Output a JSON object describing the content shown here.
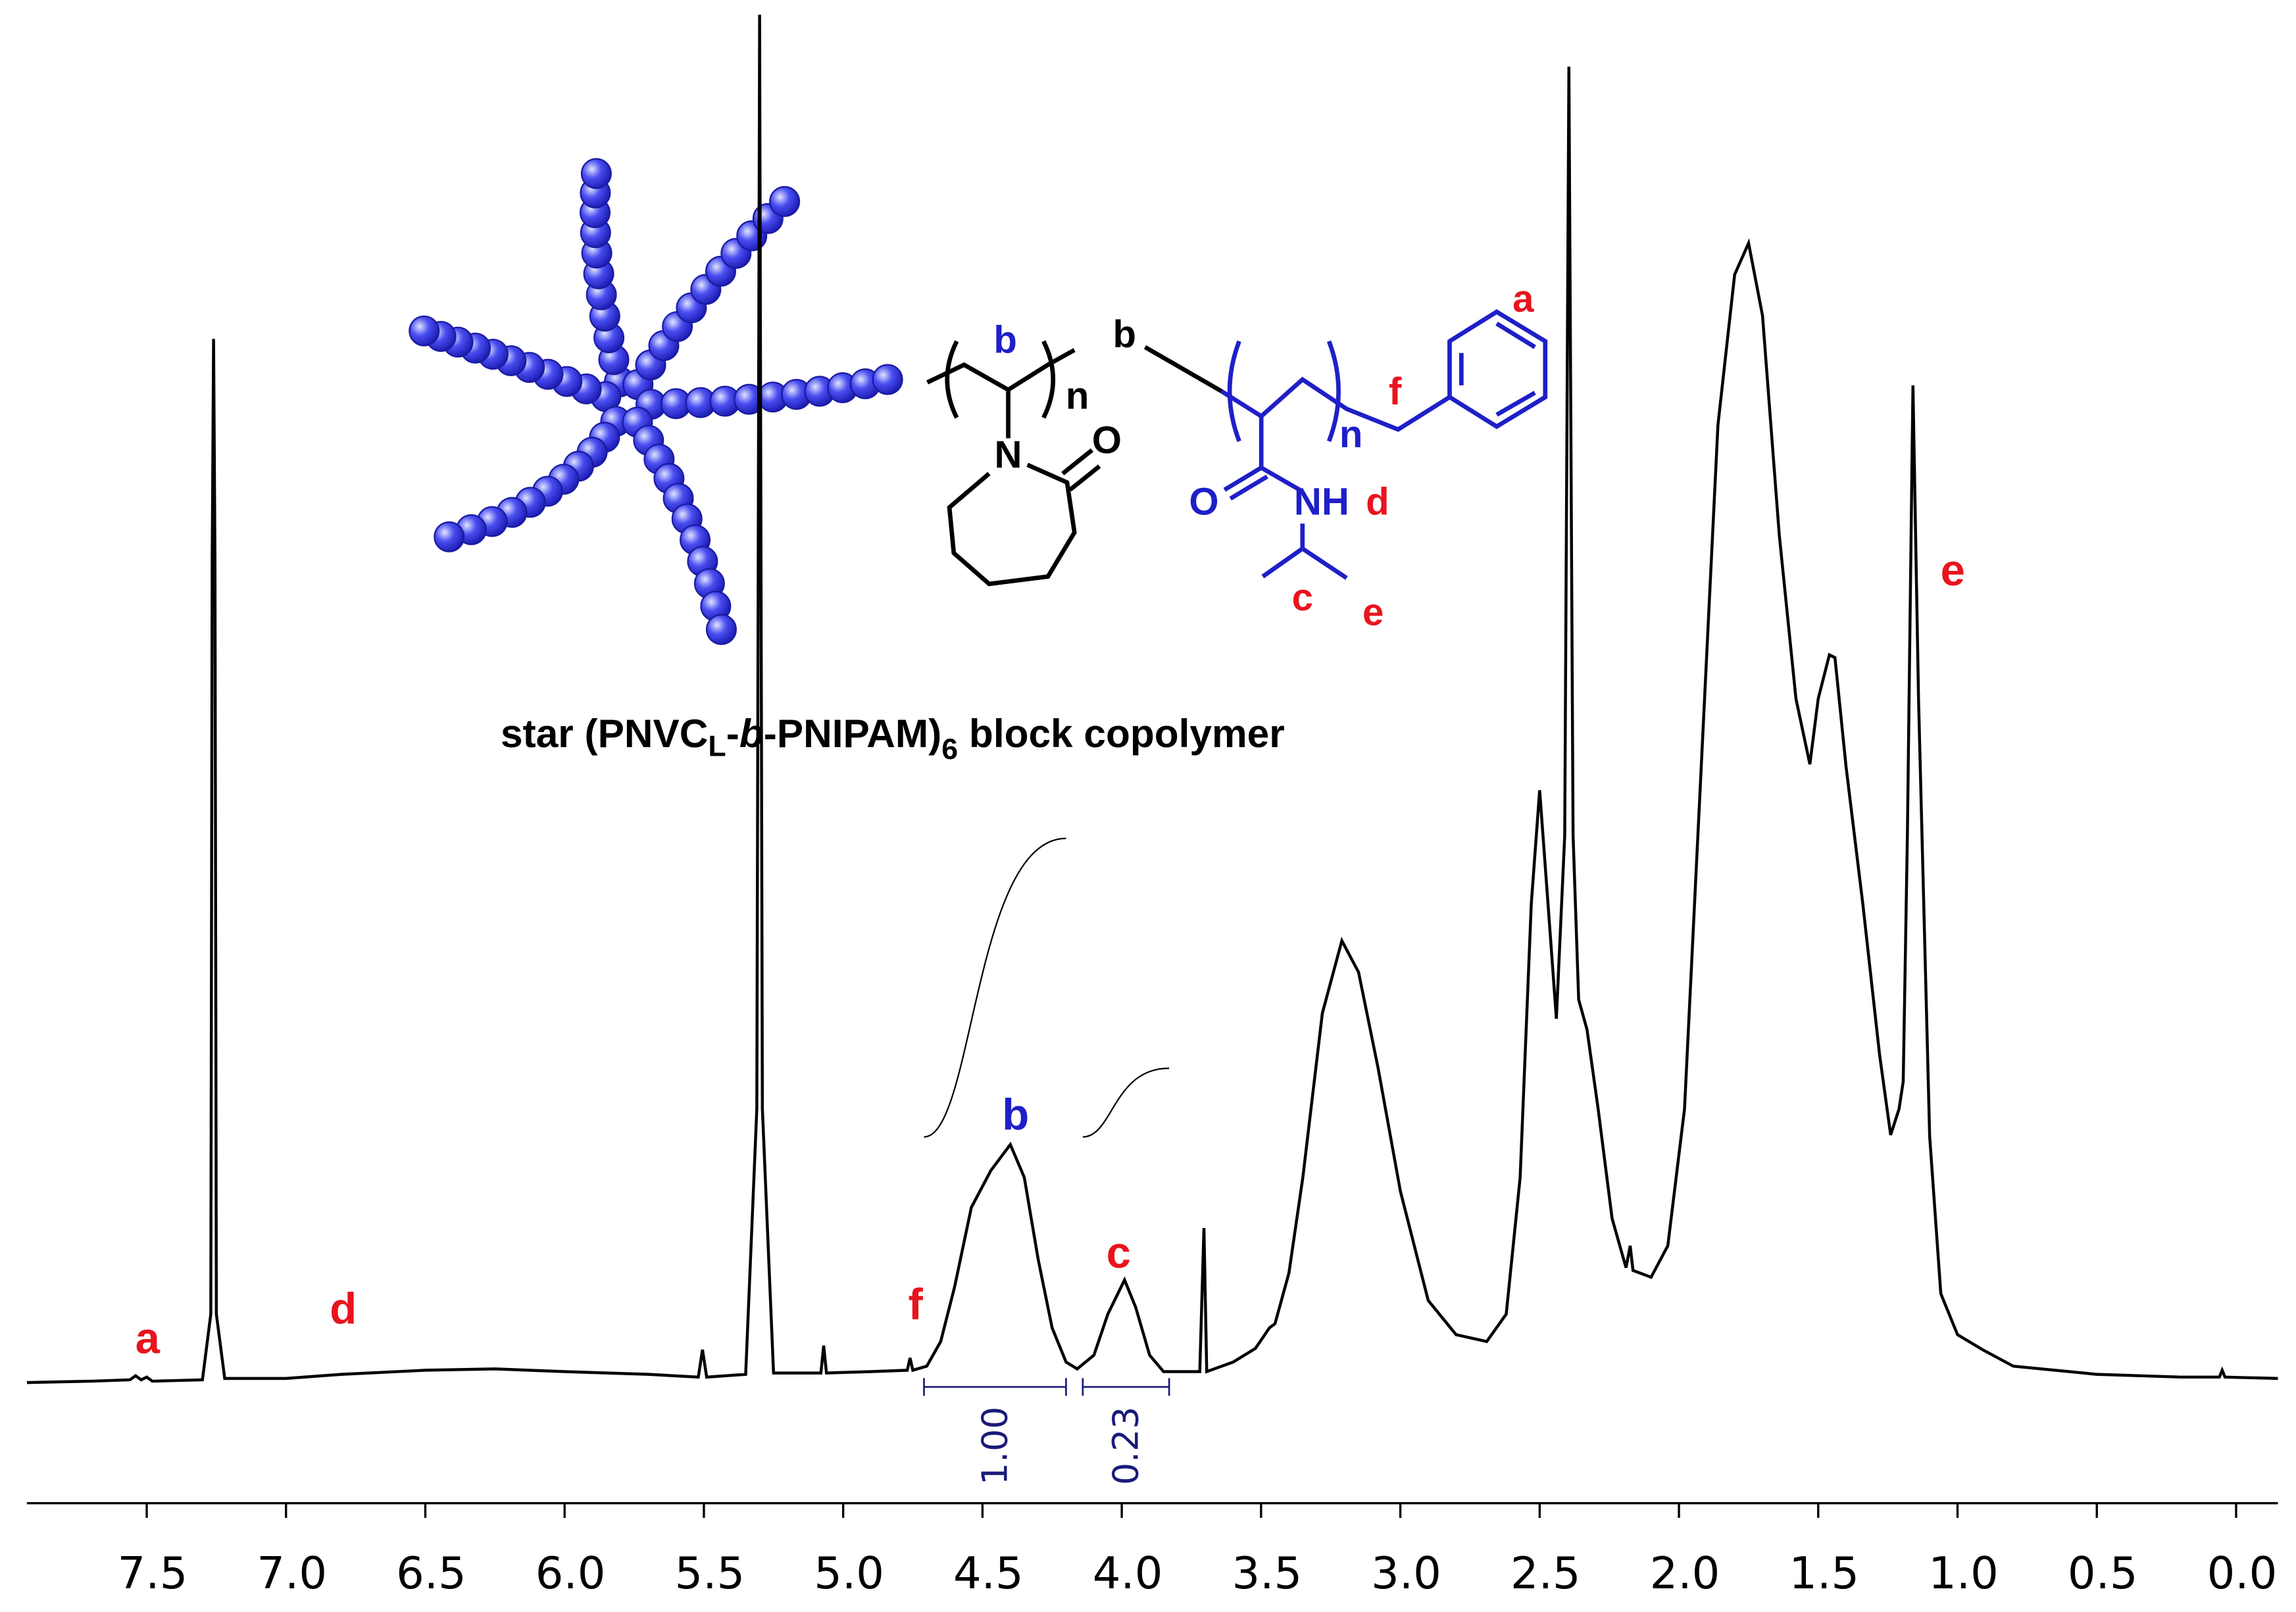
{
  "chart_data": {
    "type": "line",
    "x": [
      7.93,
      7.7,
      7.56,
      7.54,
      7.52,
      7.5,
      7.48,
      7.3,
      7.27,
      7.265,
      7.26,
      7.255,
      7.25,
      7.22,
      7.0,
      6.8,
      6.5,
      6.25,
      6.0,
      5.7,
      5.52,
      5.505,
      5.49,
      5.35,
      5.31,
      5.3,
      5.29,
      5.25,
      5.08,
      5.07,
      5.06,
      4.9,
      4.77,
      4.76,
      4.75,
      4.7,
      4.65,
      4.6,
      4.54,
      4.47,
      4.4,
      4.35,
      4.3,
      4.25,
      4.2,
      4.16,
      4.1,
      4.05,
      3.99,
      3.95,
      3.9,
      3.85,
      3.72,
      3.705,
      3.695,
      3.6,
      3.52,
      3.47,
      3.45,
      3.4,
      3.35,
      3.28,
      3.21,
      3.15,
      3.08,
      3.0,
      2.9,
      2.8,
      2.69,
      2.62,
      2.57,
      2.53,
      2.5,
      2.47,
      2.44,
      2.41,
      2.395,
      2.38,
      2.36,
      2.33,
      2.29,
      2.24,
      2.19,
      2.175,
      2.165,
      2.1,
      2.04,
      1.98,
      1.92,
      1.86,
      1.8,
      1.75,
      1.7,
      1.64,
      1.58,
      1.53,
      1.5,
      1.46,
      1.44,
      1.4,
      1.34,
      1.28,
      1.24,
      1.21,
      1.195,
      1.18,
      1.16,
      1.14,
      1.1,
      1.06,
      1.0,
      0.91,
      0.8,
      0.5,
      0.2,
      0.06,
      0.05,
      0.04,
      -0.15
    ],
    "values": [
      0,
      0.1,
      0.2,
      0.5,
      0.2,
      0.4,
      0.1,
      0.2,
      5,
      60,
      76.3,
      60,
      5,
      0.3,
      0.3,
      0.6,
      0.9,
      1.0,
      0.8,
      0.6,
      0.4,
      2.4,
      0.4,
      0.6,
      20,
      100,
      20,
      0.7,
      0.7,
      2.7,
      0.7,
      0.8,
      0.9,
      1.8,
      0.9,
      1.2,
      3,
      7,
      12.8,
      15.5,
      17.4,
      15,
      9,
      4,
      1.5,
      1.0,
      2.0,
      5,
      7.5,
      5.5,
      2,
      0.8,
      0.8,
      11.3,
      0.8,
      1.5,
      2.5,
      4,
      4.3,
      8,
      15,
      27,
      32.3,
      30,
      23,
      14,
      6,
      3.5,
      3.0,
      5,
      15,
      35,
      43.3,
      35,
      26.6,
      40,
      96.2,
      40,
      28,
      25.8,
      20,
      12,
      8.4,
      10,
      8.2,
      7.7,
      10,
      20,
      45,
      70,
      81,
      83.3,
      78,
      62,
      50,
      45.2,
      50,
      53.2,
      53,
      45,
      35,
      24,
      18.1,
      20,
      22,
      40,
      72.9,
      50,
      18,
      6.5,
      3.5,
      2.4,
      1.2,
      0.6,
      0.4,
      0.4,
      0.9,
      0.4,
      0.3
    ],
    "color": "#000000",
    "xlim": [
      7.93,
      -0.15
    ],
    "ylim": [
      0,
      100
    ],
    "xticks": [
      7.5,
      {
        "value": 7,
        "label": "7.0"
      },
      6.5,
      {
        "value": 6,
        "label": "6.0"
      },
      5.5,
      {
        "value": 5,
        "label": "5.0"
      },
      4.5,
      {
        "value": 4,
        "label": "4.0"
      },
      3.5,
      {
        "value": 3,
        "label": "3.0"
      },
      2.5,
      {
        "value": 2,
        "label": "2.0"
      },
      1.5,
      {
        "value": 1,
        "label": "1.0"
      },
      0.5,
      {
        "value": 0,
        "label": "0.0"
      }
    ],
    "annotations": [
      {
        "text": "a",
        "color": "#e8141e"
      },
      {
        "text": "d",
        "color": "#e8141e"
      },
      {
        "text": "f",
        "color": "#e8141e"
      },
      {
        "text": "b",
        "color": "#1f1fc8"
      },
      {
        "text": "c",
        "color": "#e8141e"
      },
      {
        "text": "e",
        "color": "#e8141e"
      }
    ],
    "integrals": [
      {
        "value": 1,
        "label": "1.00",
        "range": [
          4.71,
          4.2
        ]
      },
      {
        "value": 0.23,
        "label": "0.23",
        "range": [
          4.14,
          3.83
        ]
      }
    ],
    "integral_color": "#1a1a7a"
  },
  "structure": {
    "labels": [
      "b",
      "n",
      "b",
      "N",
      "O",
      "n",
      "f",
      "a",
      "O",
      "NH",
      "d",
      "c",
      "e"
    ],
    "caption": [
      "star (PNVC",
      "L",
      "-",
      "b",
      "-PNIPAM)",
      "6",
      " block copolymer"
    ]
  }
}
